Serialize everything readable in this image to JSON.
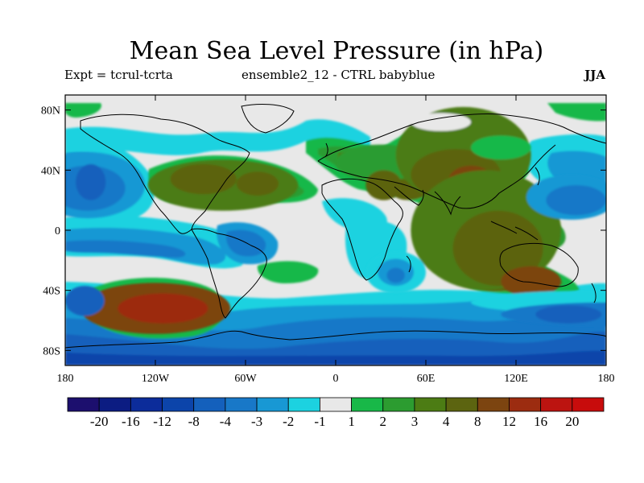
{
  "header": {
    "title": "Mean Sea Level Pressure (in hPa)",
    "left": "Expt = tcrul-tcrta",
    "center": "ensemble2_12 - CTRL babyblue",
    "right": "JJA"
  },
  "chart_data": {
    "type": "heatmap",
    "title": "Mean Sea Level Pressure (in hPa)",
    "projection": "cylindrical equidistant",
    "xlim": [
      -180,
      180
    ],
    "ylim": [
      -90,
      90
    ],
    "x_ticks": [
      {
        "value": -180,
        "label": "180"
      },
      {
        "value": -120,
        "label": "120W"
      },
      {
        "value": -60,
        "label": "60W"
      },
      {
        "value": 0,
        "label": "0"
      },
      {
        "value": 60,
        "label": "60E"
      },
      {
        "value": 120,
        "label": "120E"
      },
      {
        "value": 180,
        "label": "180"
      }
    ],
    "y_ticks": [
      {
        "value": 80,
        "label": "80N"
      },
      {
        "value": 40,
        "label": "40N"
      },
      {
        "value": 0,
        "label": "0"
      },
      {
        "value": -40,
        "label": "40S"
      },
      {
        "value": -80,
        "label": "80S"
      }
    ],
    "colorbar": {
      "colors": [
        "#1c0f6e",
        "#0c1c82",
        "#0c2c9a",
        "#0c44aa",
        "#1460bc",
        "#1878c8",
        "#1898d4",
        "#1cd2e0",
        "#e8e8e8",
        "#18b848",
        "#2c9c30",
        "#4c7c14",
        "#5c6410",
        "#7c4410",
        "#9c2c10",
        "#bc1410",
        "#c80c0c"
      ],
      "labels": [
        "-20",
        "-16",
        "-12",
        "-8",
        "-4",
        "-3",
        "-2",
        "-1",
        "1",
        "2",
        "3",
        "4",
        "8",
        "12",
        "16",
        "20"
      ]
    },
    "blobs": [
      {
        "lon": -120,
        "lat": -52,
        "rx": 50,
        "ry": 17,
        "value": 8
      },
      {
        "lon": -115,
        "lat": -52,
        "rx": 30,
        "ry": 10,
        "value": 12
      },
      {
        "lon": -75,
        "lat": 30,
        "rx": 50,
        "ry": 17,
        "value": 3
      },
      {
        "lon": -88,
        "lat": 34,
        "rx": 22,
        "ry": 10,
        "value": 4
      },
      {
        "lon": -52,
        "lat": 31,
        "rx": 14,
        "ry": 8,
        "value": 4
      },
      {
        "lon": 30,
        "lat": 45,
        "rx": 30,
        "ry": 12,
        "value": 2
      },
      {
        "lon": 32,
        "lat": 30,
        "rx": 12,
        "ry": 10,
        "value": 4
      },
      {
        "lon": 85,
        "lat": 50,
        "rx": 45,
        "ry": 32,
        "value": 3
      },
      {
        "lon": 80,
        "lat": 37,
        "rx": 30,
        "ry": 17,
        "value": 4
      },
      {
        "lon": 90,
        "lat": 33,
        "rx": 15,
        "ry": 10,
        "value": 8
      },
      {
        "lon": 100,
        "lat": 0,
        "rx": 50,
        "ry": 40,
        "value": 3
      },
      {
        "lon": 108,
        "lat": -12,
        "rx": 30,
        "ry": 25,
        "value": 4
      },
      {
        "lon": 130,
        "lat": -34,
        "rx": 20,
        "ry": 10,
        "value": 8
      },
      {
        "lon": -165,
        "lat": 30,
        "rx": 38,
        "ry": 22,
        "value": -3
      },
      {
        "lon": -165,
        "lat": 28,
        "rx": 25,
        "ry": 15,
        "value": -4
      },
      {
        "lon": -163,
        "lat": 32,
        "rx": 10,
        "ry": 12,
        "value": -8
      },
      {
        "lon": 157,
        "lat": 22,
        "rx": 30,
        "ry": 15,
        "value": -3
      },
      {
        "lon": 160,
        "lat": 20,
        "rx": 20,
        "ry": 10,
        "value": -4
      },
      {
        "lon": 180,
        "lat": -48,
        "rx": 90,
        "ry": 8,
        "value": -2
      },
      {
        "lon": 180,
        "lat": -56,
        "rx": 70,
        "ry": 8,
        "value": -4
      },
      {
        "lon": 155,
        "lat": -56,
        "rx": 22,
        "ry": 6,
        "value": -8
      },
      {
        "lon": -167,
        "lat": -47,
        "rx": 13,
        "ry": 10,
        "value": -8
      },
      {
        "lon": 40,
        "lat": -28,
        "rx": 20,
        "ry": 14,
        "value": -2
      },
      {
        "lon": 40,
        "lat": -28,
        "rx": 12,
        "ry": 9,
        "value": -3
      },
      {
        "lon": 40,
        "lat": -30,
        "rx": 6,
        "ry": 5,
        "value": -4
      },
      {
        "lon": 70,
        "lat": 72,
        "rx": 20,
        "ry": 6,
        "value": -1
      },
      {
        "lon": 110,
        "lat": 55,
        "rx": 20,
        "ry": 8,
        "value": 1
      }
    ]
  }
}
